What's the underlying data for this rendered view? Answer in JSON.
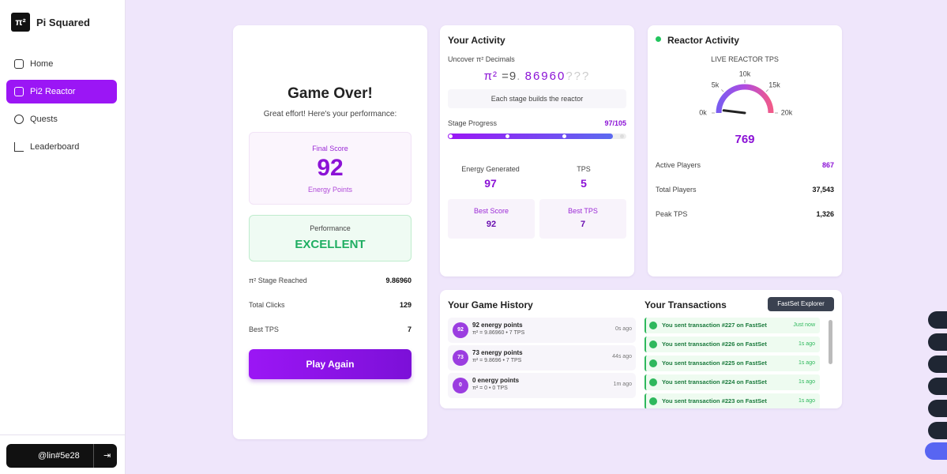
{
  "sidebar": {
    "logo": "π²",
    "brand": "Pi Squared",
    "nav": [
      "Home",
      "Pi2 Reactor",
      "Quests",
      "Leaderboard"
    ],
    "user": "@lin#5e28"
  },
  "game_over": {
    "title": "Game Over!",
    "subtitle": "Great effort! Here's your performance:",
    "final_score_label": "Final Score",
    "final_score": 92,
    "final_score_unit": "Energy Points",
    "performance_label": "Performance",
    "performance": "EXCELLENT",
    "stats": [
      {
        "label": "π² Stage Reached",
        "value": "9.86960"
      },
      {
        "label": "Total Clicks",
        "value": "129"
      },
      {
        "label": "Best TPS",
        "value": "7"
      }
    ],
    "button": "Play Again"
  },
  "activity": {
    "title": "Your Activity",
    "decimals_label": "Uncover π² Decimals",
    "pi": "π²",
    "equals": "=",
    "integer": "9",
    "dot": ".",
    "found": "86960",
    "hidden": "???",
    "note": "Each stage builds the reactor",
    "progress_label": "Stage Progress",
    "progress": {
      "label": "97/105",
      "value": 97,
      "max": 105
    },
    "energy_label": "Energy Generated",
    "energy": 97,
    "tps_label": "TPS",
    "tps": 5,
    "best_score_label": "Best Score",
    "best_score": 92,
    "best_tps_label": "Best TPS",
    "best_tps": 7
  },
  "reactor": {
    "title": "Reactor Activity",
    "gauge_label": "LIVE REACTOR TPS",
    "gauge_range": [
      0,
      20000
    ],
    "gauge_ticks": [
      {
        "value": 0,
        "label": "0k"
      },
      {
        "value": 5000,
        "label": "5k"
      },
      {
        "value": 10000,
        "label": "10k"
      },
      {
        "value": 15000,
        "label": "15k"
      },
      {
        "value": 20000,
        "label": "20k"
      }
    ],
    "tps": 769,
    "stats": [
      {
        "label": "Active Players",
        "value": "867"
      },
      {
        "label": "Total Players",
        "value": "37,543"
      },
      {
        "label": "Peak TPS",
        "value": "1,326"
      }
    ]
  },
  "history": {
    "title": "Your Game History",
    "items": [
      {
        "badge": "92",
        "title": "92 energy points",
        "detail": "π² = 9.86960 • 7 TPS",
        "time": "0s ago"
      },
      {
        "badge": "73",
        "title": "73 energy points",
        "detail": "π² = 9.8696 • 7 TPS",
        "time": "44s ago"
      },
      {
        "badge": "0",
        "title": "0 energy points",
        "detail": "π² = 0 • 0 TPS",
        "time": "1m ago"
      }
    ]
  },
  "transactions": {
    "title": "Your Transactions",
    "button": "FastSet Explorer",
    "items": [
      {
        "text": "You sent transaction #227 on FastSet",
        "time": "Just now"
      },
      {
        "text": "You sent transaction #226 on FastSet",
        "time": "1s ago"
      },
      {
        "text": "You sent transaction #225 on FastSet",
        "time": "1s ago"
      },
      {
        "text": "You sent transaction #224 on FastSet",
        "time": "1s ago"
      },
      {
        "text": "You sent transaction #223 on FastSet",
        "time": "1s ago"
      }
    ]
  }
}
